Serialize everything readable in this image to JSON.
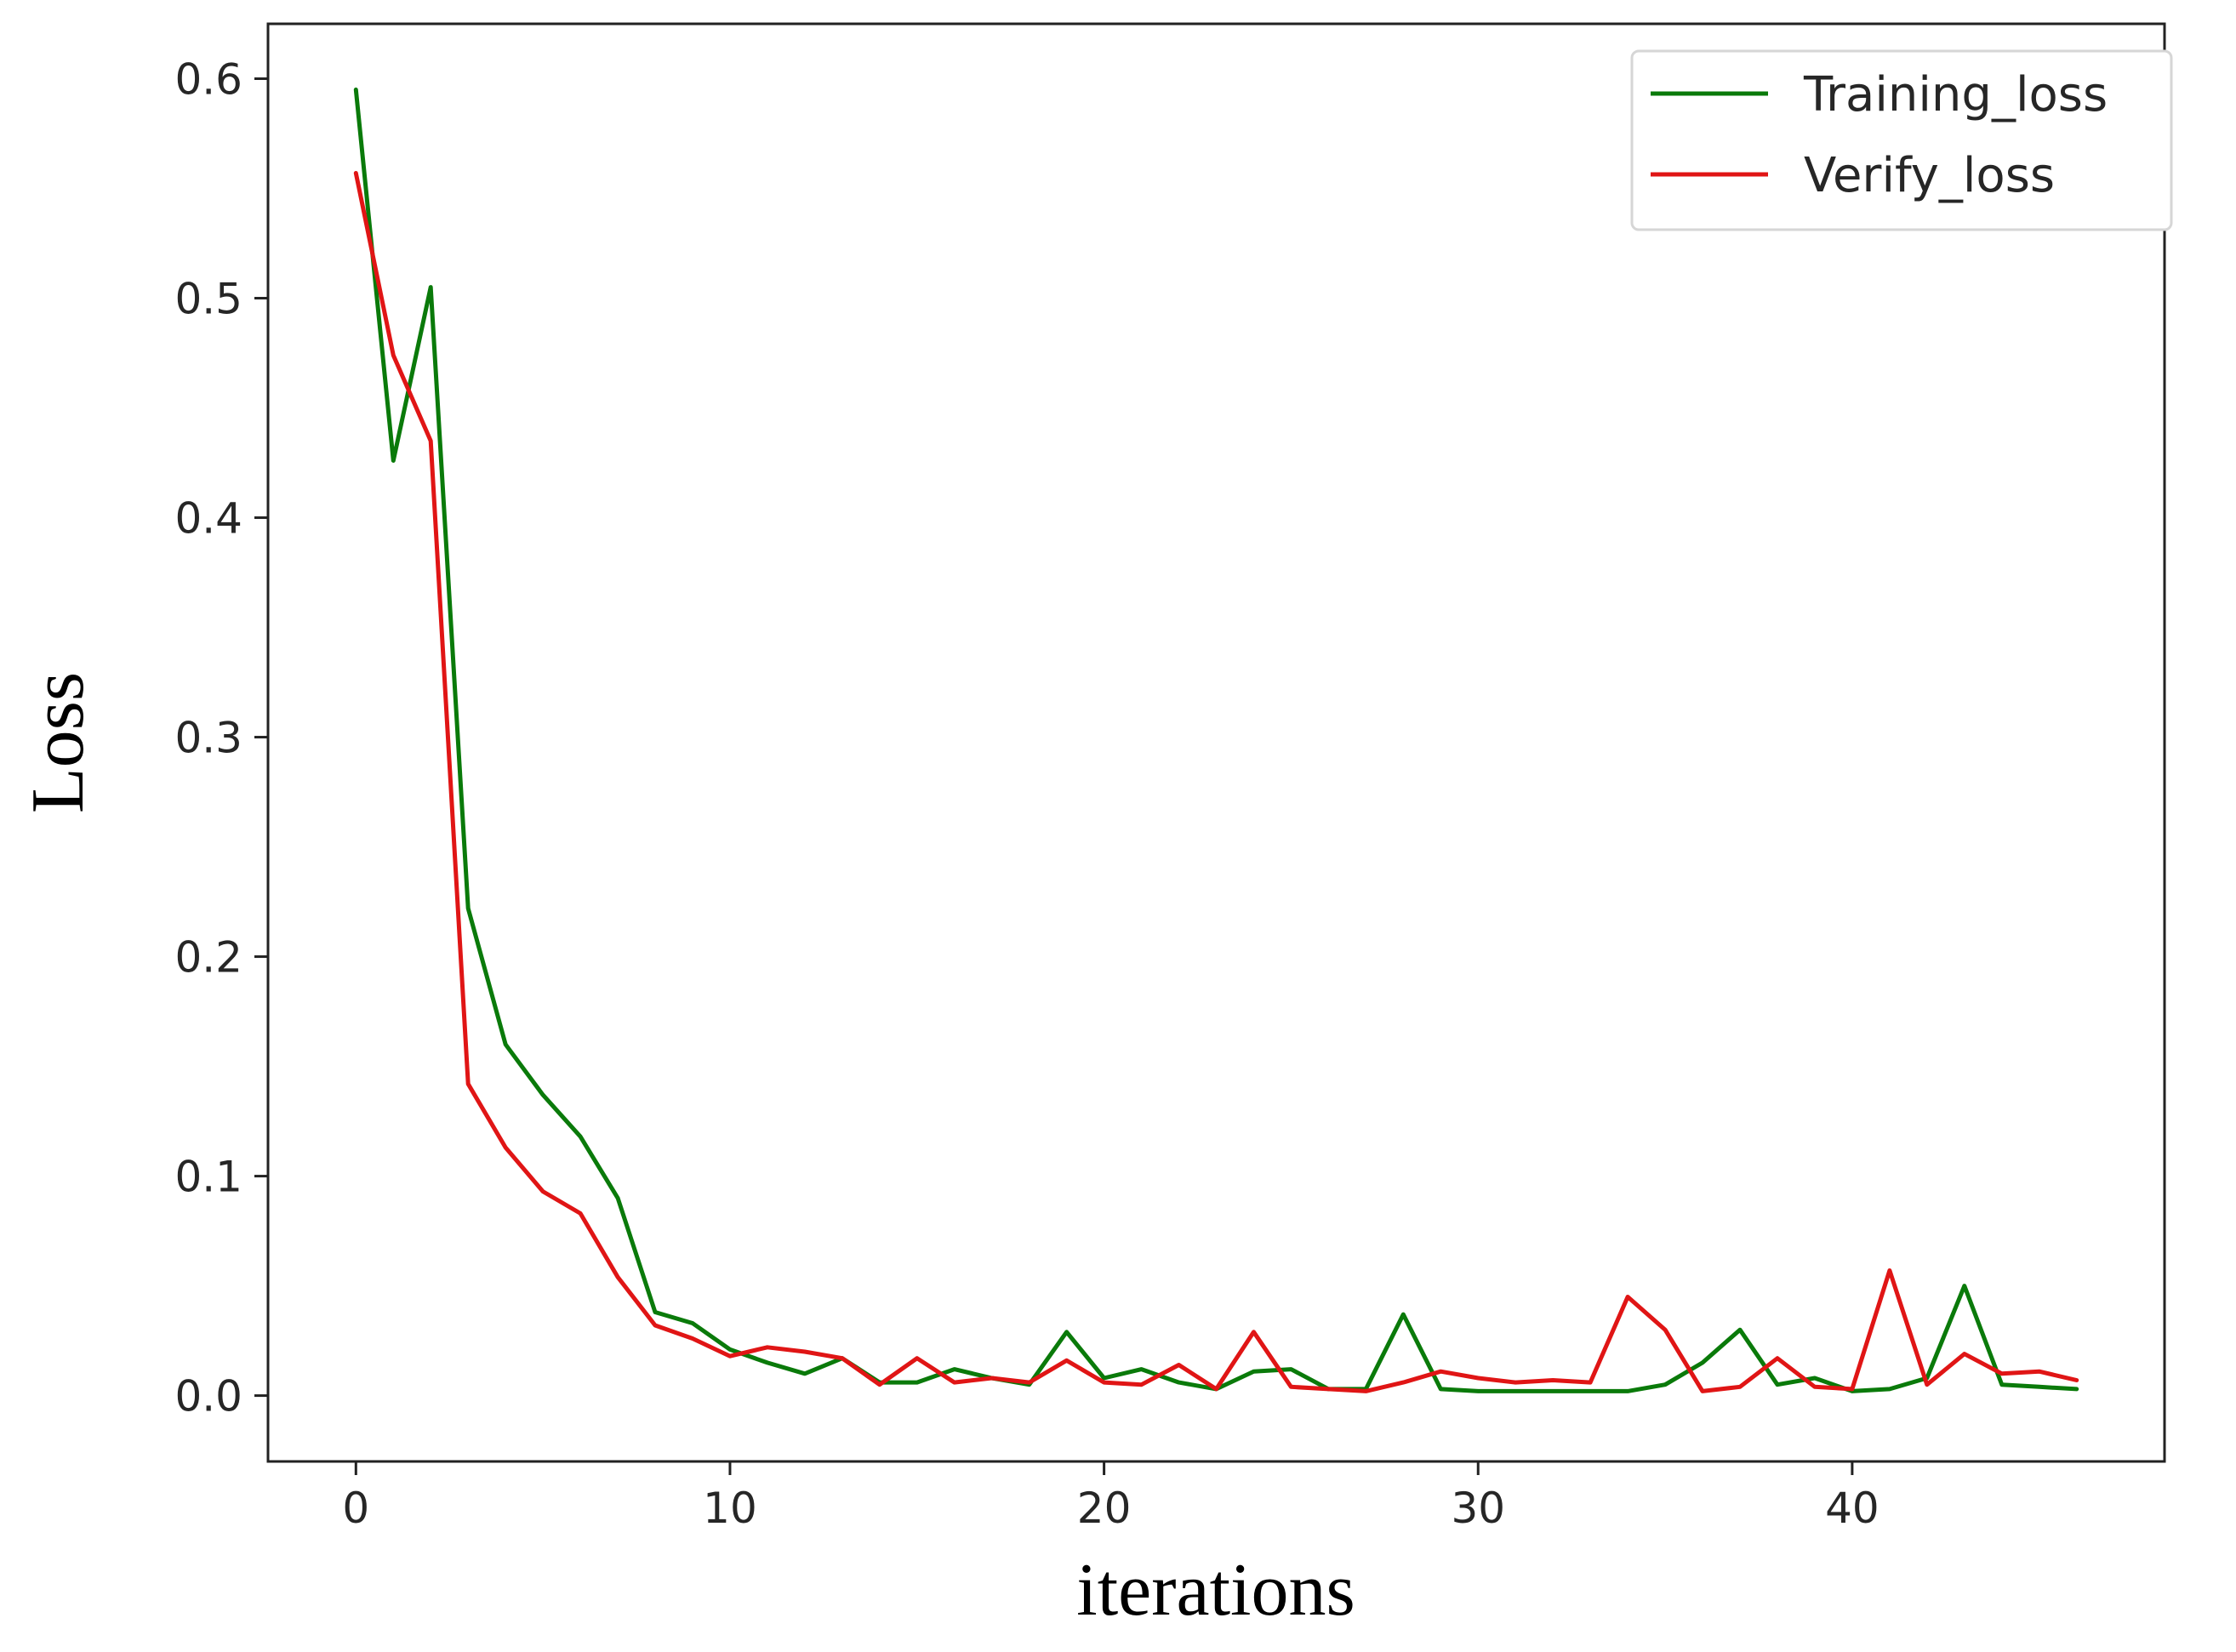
{
  "chart_data": {
    "type": "line",
    "title": "",
    "xlabel": "iterations",
    "ylabel": "Loss",
    "xlim": [
      -2.35,
      48.35
    ],
    "ylim": [
      -0.03,
      0.625
    ],
    "xticks": [
      0,
      10,
      20,
      30,
      40
    ],
    "xtick_labels": [
      "0",
      "10",
      "20",
      "30",
      "40"
    ],
    "yticks": [
      0.0,
      0.1,
      0.2,
      0.3,
      0.4,
      0.5,
      0.6
    ],
    "ytick_labels": [
      "0.0",
      "0.1",
      "0.2",
      "0.3",
      "0.4",
      "0.5",
      "0.6"
    ],
    "grid": false,
    "legend": "top-right",
    "x": [
      0,
      1,
      2,
      3,
      4,
      5,
      6,
      7,
      8,
      9,
      10,
      11,
      12,
      13,
      14,
      15,
      16,
      17,
      18,
      19,
      20,
      21,
      22,
      23,
      24,
      25,
      26,
      27,
      28,
      29,
      30,
      31,
      32,
      33,
      34,
      35,
      36,
      37,
      38,
      39,
      40,
      41,
      42,
      43,
      44,
      45,
      46
    ],
    "series": [
      {
        "name": "Training_loss",
        "color": "#0a7a0a",
        "values": [
          0.595,
          0.426,
          0.505,
          0.222,
          0.16,
          0.137,
          0.118,
          0.09,
          0.038,
          0.033,
          0.021,
          0.015,
          0.01,
          0.017,
          0.006,
          0.006,
          0.012,
          0.008,
          0.005,
          0.029,
          0.008,
          0.012,
          0.006,
          0.003,
          0.011,
          0.012,
          0.003,
          0.003,
          0.037,
          0.003,
          0.002,
          0.002,
          0.002,
          0.002,
          0.002,
          0.005,
          0.015,
          0.03,
          0.005,
          0.008,
          0.002,
          0.003,
          0.008,
          0.05,
          0.005,
          0.004,
          0.003
        ]
      },
      {
        "name": "Verify_loss",
        "color": "#e01515",
        "values": [
          0.557,
          0.474,
          0.435,
          0.142,
          0.113,
          0.093,
          0.083,
          0.054,
          0.032,
          0.026,
          0.018,
          0.022,
          0.02,
          0.017,
          0.005,
          0.017,
          0.006,
          0.008,
          0.006,
          0.016,
          0.006,
          0.005,
          0.014,
          0.003,
          0.029,
          0.004,
          0.003,
          0.002,
          0.006,
          0.011,
          0.008,
          0.006,
          0.007,
          0.006,
          0.045,
          0.03,
          0.002,
          0.004,
          0.017,
          0.004,
          0.003,
          0.057,
          0.005,
          0.019,
          0.01,
          0.011,
          0.007
        ]
      }
    ]
  }
}
